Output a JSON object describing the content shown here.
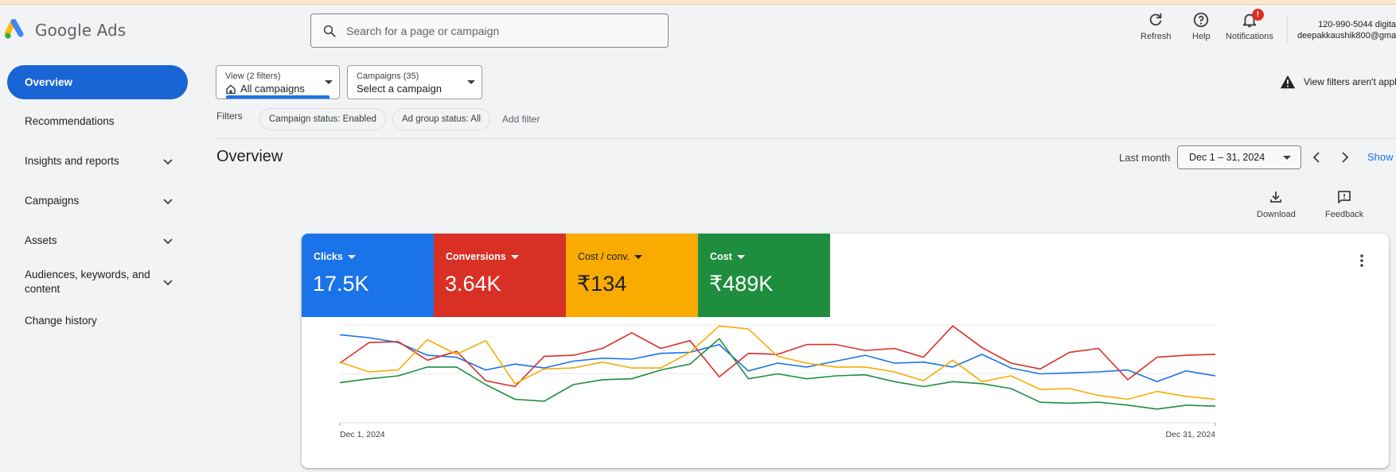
{
  "app": {
    "name": "Google Ads",
    "search_placeholder": "Search for a page or campaign"
  },
  "header": {
    "refresh_label": "Refresh",
    "help_label": "Help",
    "notifications_label": "Notifications",
    "notifications_badge": "!",
    "account_phone": "120-990-5044 digita",
    "account_email": "deepakkaushik800@gma"
  },
  "sidebar": {
    "items": [
      {
        "label": "Overview"
      },
      {
        "label": "Recommendations"
      },
      {
        "label": "Insights and reports"
      },
      {
        "label": "Campaigns"
      },
      {
        "label": "Assets"
      },
      {
        "label": "Audiences, keywords, and content"
      },
      {
        "label": "Change history"
      }
    ]
  },
  "toolbar": {
    "view_small": "View (2 filters)",
    "view_value": "All campaigns",
    "campaigns_small": "Campaigns (35)",
    "campaigns_value": "Select a campaign",
    "filters_label": "Filters",
    "chips": [
      "Campaign status: Enabled",
      "Ad group status: All"
    ],
    "add_filter": "Add filter",
    "warning_text": "View filters aren't applie"
  },
  "overview": {
    "title": "Overview",
    "period_label": "Last month",
    "date_range": "Dec 1 – 31, 2024",
    "show_label": "Show",
    "download_label": "Download",
    "feedback_label": "Feedback"
  },
  "metrics": [
    {
      "label": "Clicks",
      "value": "17.5K",
      "color": "#1a73e8"
    },
    {
      "label": "Conversions",
      "value": "3.64K",
      "color": "#d93025"
    },
    {
      "label": "Cost / conv.",
      "value": "₹134",
      "color": "#f9ab00"
    },
    {
      "label": "Cost",
      "value": "₹489K",
      "color": "#1e8e3e"
    }
  ],
  "chart_data": {
    "type": "line",
    "x": [
      "Dec 1",
      "Dec 2",
      "Dec 3",
      "Dec 4",
      "Dec 5",
      "Dec 6",
      "Dec 7",
      "Dec 8",
      "Dec 9",
      "Dec 10",
      "Dec 11",
      "Dec 12",
      "Dec 13",
      "Dec 14",
      "Dec 15",
      "Dec 16",
      "Dec 17",
      "Dec 18",
      "Dec 19",
      "Dec 20",
      "Dec 21",
      "Dec 22",
      "Dec 23",
      "Dec 24",
      "Dec 25",
      "Dec 26",
      "Dec 27",
      "Dec 28",
      "Dec 29",
      "Dec 30",
      "Dec 31"
    ],
    "x_tick_labels": [
      "Dec 1, 2024",
      "Dec 31, 2024"
    ],
    "ylim": [
      0,
      100
    ],
    "gridlines": [
      50,
      100
    ],
    "series": [
      {
        "color": "#1a73e8",
        "values": [
          90,
          87,
          82,
          69,
          67,
          54,
          60,
          56,
          63,
          66,
          65,
          71,
          72,
          80,
          53,
          61,
          57,
          63,
          69,
          61,
          62,
          57,
          70,
          56,
          50,
          51,
          52,
          54,
          42,
          53,
          48
        ]
      },
      {
        "color": "#d93025",
        "values": [
          61,
          82,
          83,
          64,
          73,
          43,
          37,
          68,
          69,
          76,
          92,
          76,
          84,
          47,
          71,
          70,
          80,
          80,
          74,
          76,
          67,
          99,
          77,
          61,
          55,
          72,
          76,
          44,
          67,
          69,
          70
        ]
      },
      {
        "color": "#f9ab00",
        "values": [
          62,
          52,
          54,
          85,
          70,
          84,
          40,
          55,
          56,
          62,
          56,
          56,
          72,
          99,
          96,
          68,
          61,
          57,
          57,
          52,
          43,
          64,
          42,
          48,
          34,
          35,
          28,
          24,
          32,
          27,
          24
        ]
      },
      {
        "color": "#1e8e3e",
        "values": [
          41,
          45,
          48,
          57,
          57,
          39,
          24,
          22,
          39,
          44,
          45,
          54,
          60,
          86,
          45,
          50,
          45,
          48,
          49,
          42,
          37,
          42,
          40,
          35,
          21,
          20,
          21,
          18,
          14,
          18,
          17
        ]
      }
    ]
  }
}
